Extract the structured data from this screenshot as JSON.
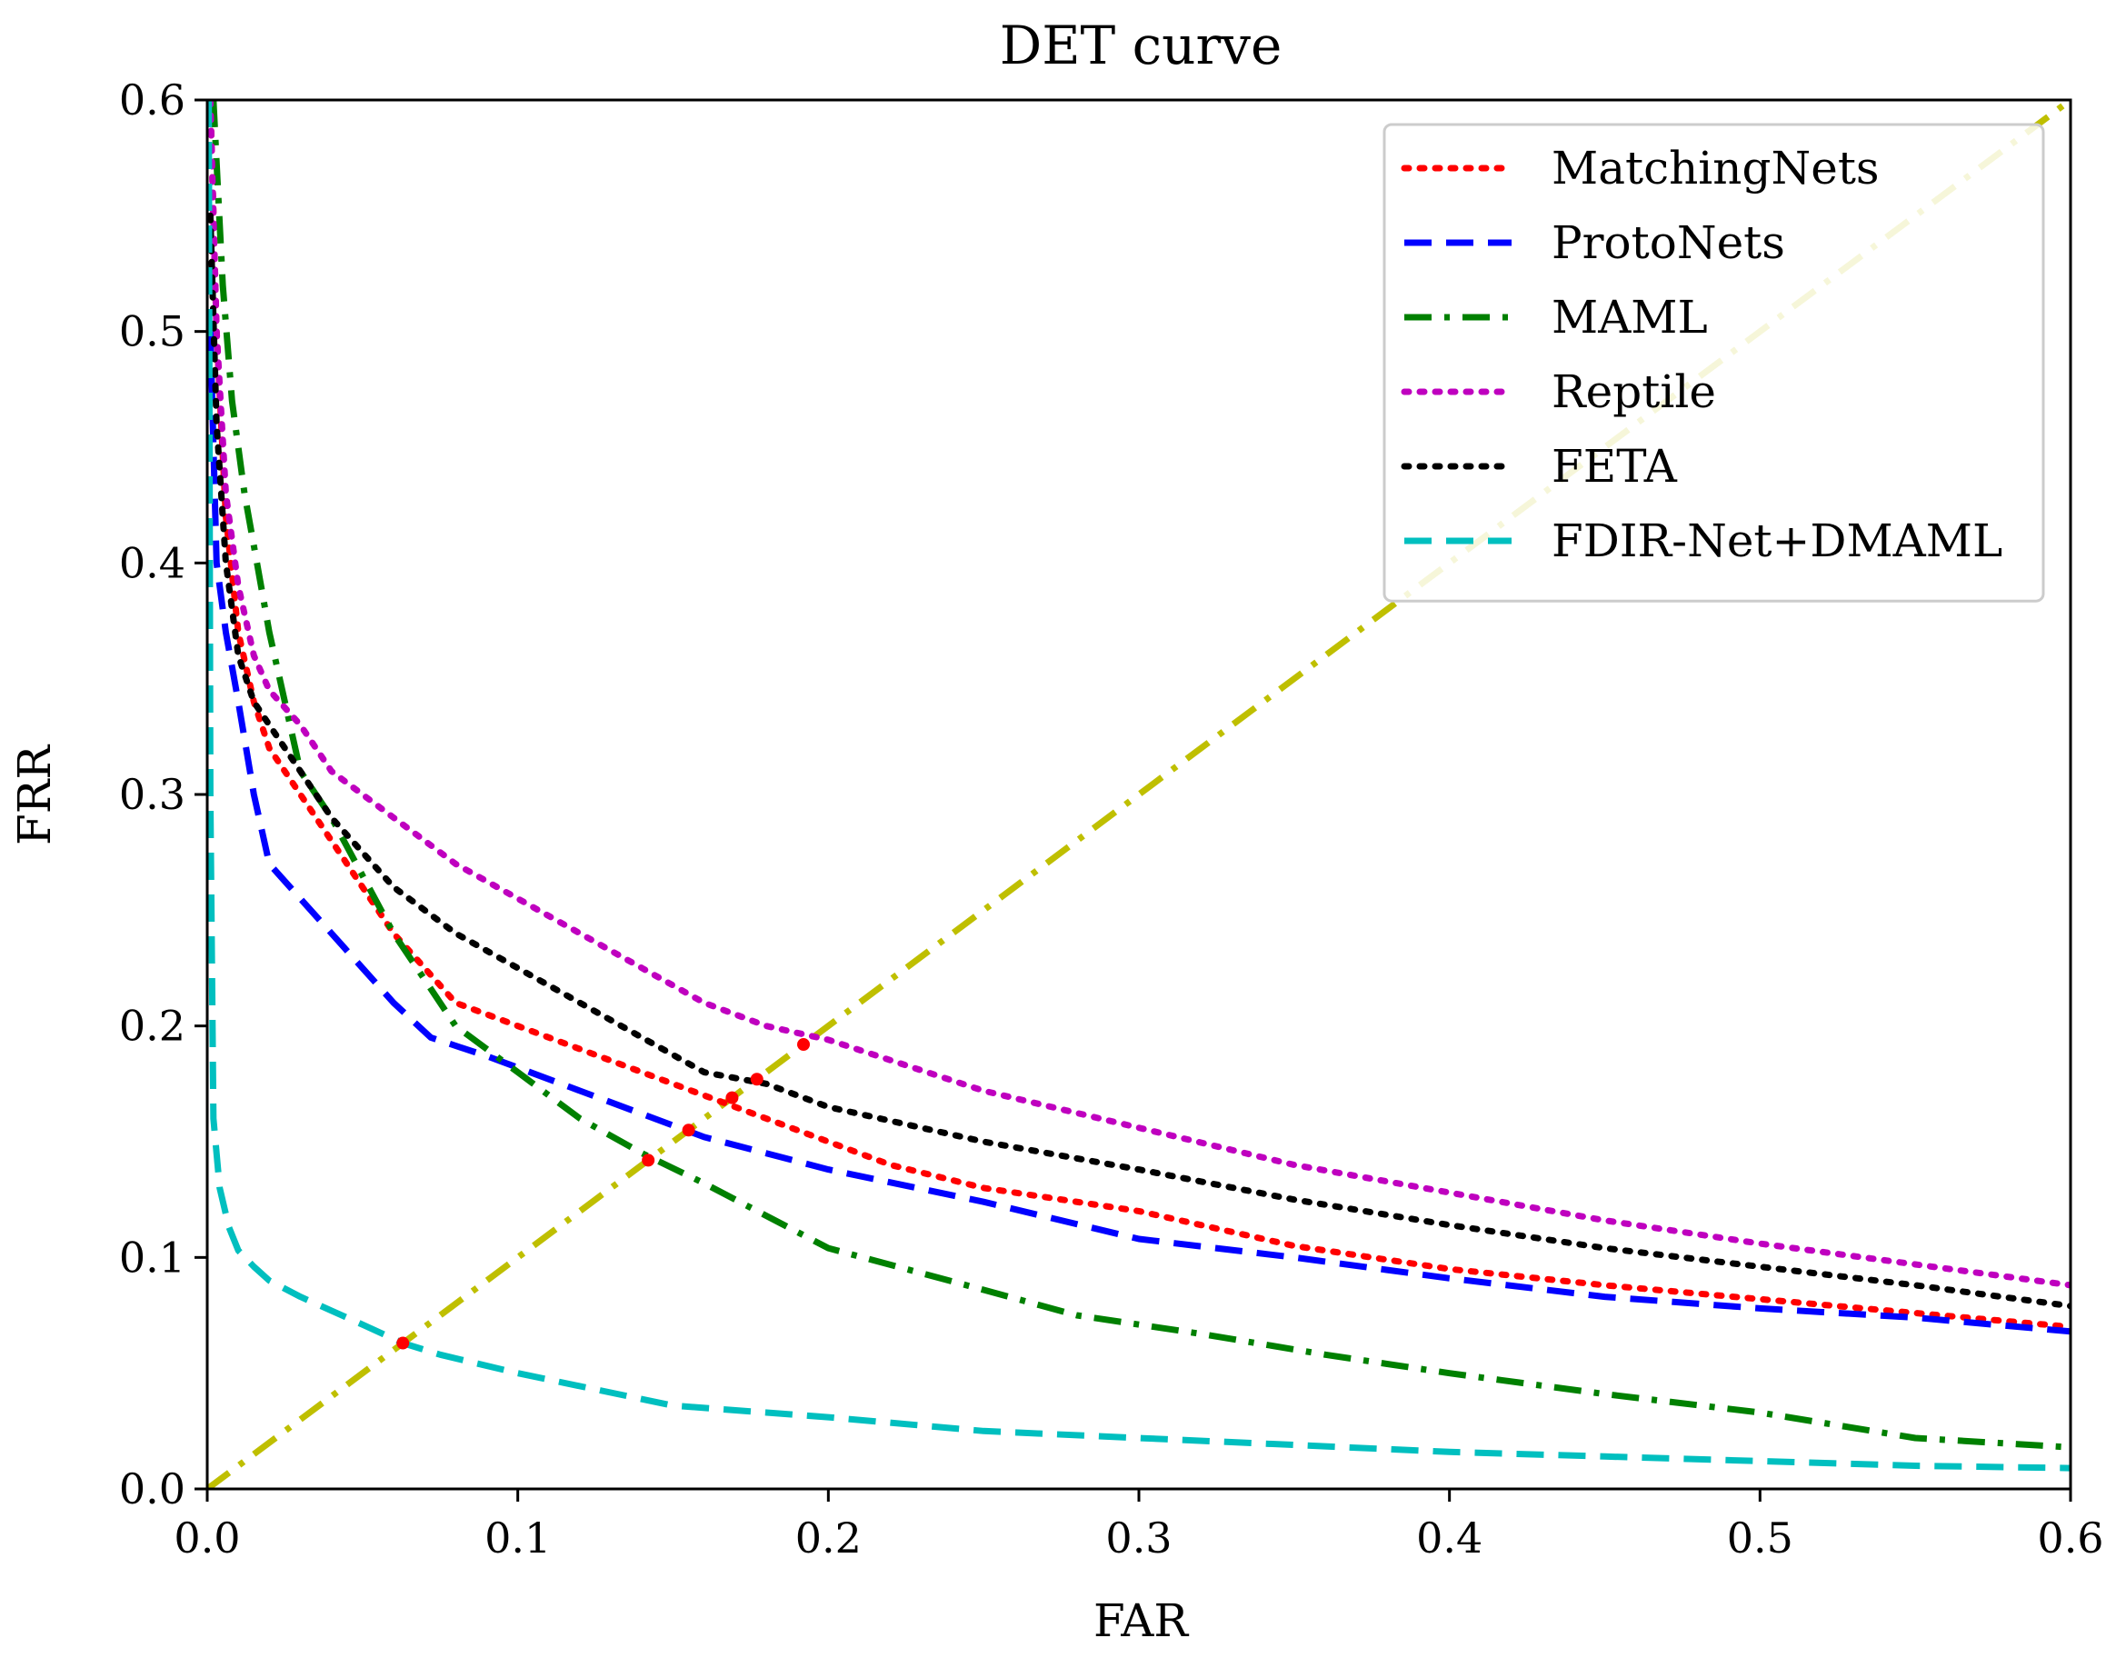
{
  "chart_data": {
    "type": "line",
    "title": "DET curve",
    "xlabel": "FAR",
    "ylabel": "FRR",
    "xlim": [
      0.0,
      0.6
    ],
    "ylim": [
      0.0,
      0.6
    ],
    "xticks": [
      0.0,
      0.1,
      0.2,
      0.3,
      0.4,
      0.5,
      0.6
    ],
    "yticks": [
      0.0,
      0.1,
      0.2,
      0.3,
      0.4,
      0.5,
      0.6
    ],
    "xtick_labels": [
      "0.0",
      "0.1",
      "0.2",
      "0.3",
      "0.4",
      "0.5",
      "0.6"
    ],
    "ytick_labels": [
      "0.0",
      "0.1",
      "0.2",
      "0.3",
      "0.4",
      "0.5",
      "0.6"
    ],
    "grid": false,
    "legend_position": "top-right",
    "series": [
      {
        "name": "MatchingNets",
        "color": "#ff0000",
        "style": "dotted",
        "x": [
          0.001,
          0.003,
          0.006,
          0.01,
          0.015,
          0.02,
          0.03,
          0.04,
          0.05,
          0.06,
          0.07,
          0.08,
          0.09,
          0.1,
          0.12,
          0.14,
          0.16,
          0.18,
          0.2,
          0.22,
          0.25,
          0.3,
          0.35,
          0.4,
          0.45,
          0.5,
          0.55,
          0.6
        ],
        "y": [
          0.6,
          0.5,
          0.42,
          0.37,
          0.34,
          0.32,
          0.3,
          0.28,
          0.26,
          0.24,
          0.225,
          0.21,
          0.205,
          0.2,
          0.19,
          0.18,
          0.17,
          0.16,
          0.15,
          0.14,
          0.13,
          0.12,
          0.105,
          0.095,
          0.088,
          0.082,
          0.076,
          0.07
        ]
      },
      {
        "name": "ProtoNets",
        "color": "#0000ff",
        "style": "dashed",
        "x": [
          0.001,
          0.003,
          0.006,
          0.01,
          0.015,
          0.02,
          0.03,
          0.04,
          0.05,
          0.06,
          0.072,
          0.09,
          0.1,
          0.12,
          0.14,
          0.16,
          0.18,
          0.2,
          0.25,
          0.3,
          0.35,
          0.4,
          0.45,
          0.5,
          0.55,
          0.6
        ],
        "y": [
          0.5,
          0.4,
          0.37,
          0.34,
          0.3,
          0.27,
          0.255,
          0.24,
          0.225,
          0.21,
          0.195,
          0.187,
          0.182,
          0.172,
          0.162,
          0.152,
          0.145,
          0.138,
          0.124,
          0.108,
          0.1,
          0.091,
          0.083,
          0.078,
          0.074,
          0.068
        ]
      },
      {
        "name": "MAML",
        "color": "#008000",
        "style": "dashdot",
        "x": [
          0.002,
          0.005,
          0.008,
          0.012,
          0.016,
          0.02,
          0.025,
          0.03,
          0.04,
          0.05,
          0.06,
          0.07,
          0.08,
          0.09,
          0.1,
          0.12,
          0.14,
          0.16,
          0.18,
          0.2,
          0.25,
          0.28,
          0.32,
          0.36,
          0.4,
          0.45,
          0.5,
          0.55,
          0.6
        ],
        "y": [
          0.6,
          0.52,
          0.47,
          0.43,
          0.4,
          0.37,
          0.34,
          0.31,
          0.29,
          0.265,
          0.24,
          0.22,
          0.2,
          0.19,
          0.18,
          0.16,
          0.145,
          0.132,
          0.118,
          0.104,
          0.086,
          0.075,
          0.067,
          0.058,
          0.05,
          0.041,
          0.033,
          0.022,
          0.018
        ]
      },
      {
        "name": "Reptile",
        "color": "#bf00bf",
        "style": "dotted",
        "x": [
          0.001,
          0.003,
          0.006,
          0.01,
          0.015,
          0.02,
          0.03,
          0.04,
          0.05,
          0.06,
          0.07,
          0.08,
          0.1,
          0.12,
          0.14,
          0.16,
          0.18,
          0.2,
          0.25,
          0.3,
          0.35,
          0.4,
          0.45,
          0.5,
          0.55,
          0.6
        ],
        "y": [
          0.6,
          0.5,
          0.43,
          0.39,
          0.36,
          0.345,
          0.33,
          0.31,
          0.3,
          0.29,
          0.28,
          0.27,
          0.255,
          0.24,
          0.225,
          0.21,
          0.2,
          0.194,
          0.172,
          0.156,
          0.14,
          0.128,
          0.116,
          0.106,
          0.097,
          0.088
        ]
      },
      {
        "name": "FETA",
        "color": "#000000",
        "style": "dotted",
        "x": [
          0.001,
          0.003,
          0.006,
          0.01,
          0.015,
          0.02,
          0.03,
          0.04,
          0.05,
          0.06,
          0.07,
          0.08,
          0.1,
          0.12,
          0.14,
          0.16,
          0.18,
          0.2,
          0.25,
          0.3,
          0.35,
          0.4,
          0.45,
          0.5,
          0.55,
          0.6
        ],
        "y": [
          0.55,
          0.46,
          0.4,
          0.36,
          0.34,
          0.33,
          0.31,
          0.29,
          0.275,
          0.26,
          0.25,
          0.24,
          0.225,
          0.21,
          0.195,
          0.18,
          0.175,
          0.165,
          0.15,
          0.138,
          0.125,
          0.114,
          0.104,
          0.096,
          0.088,
          0.079
        ]
      },
      {
        "name": "FDIR-Net+DMAML",
        "color": "#00bfbf",
        "style": "dashed",
        "x": [
          0.0005,
          0.001,
          0.002,
          0.004,
          0.007,
          0.01,
          0.015,
          0.02,
          0.03,
          0.04,
          0.05,
          0.063,
          0.075,
          0.1,
          0.125,
          0.15,
          0.2,
          0.25,
          0.3,
          0.35,
          0.4,
          0.45,
          0.5,
          0.55,
          0.6
        ],
        "y": [
          0.6,
          0.3,
          0.16,
          0.13,
          0.113,
          0.103,
          0.096,
          0.09,
          0.083,
          0.077,
          0.071,
          0.063,
          0.058,
          0.05,
          0.043,
          0.036,
          0.031,
          0.025,
          0.022,
          0.019,
          0.016,
          0.014,
          0.012,
          0.01,
          0.009
        ]
      },
      {
        "name": "EER line",
        "color": "#bfbf00",
        "style": "dashdot",
        "legend": false,
        "x": [
          0.0,
          0.6
        ],
        "y": [
          0.0,
          0.6
        ]
      }
    ],
    "eer_points": [
      {
        "series": "MatchingNets",
        "x": 0.169,
        "y": 0.169
      },
      {
        "series": "ProtoNets",
        "x": 0.155,
        "y": 0.155
      },
      {
        "series": "MAML",
        "x": 0.142,
        "y": 0.142
      },
      {
        "series": "Reptile",
        "x": 0.192,
        "y": 0.192
      },
      {
        "series": "FETA",
        "x": 0.177,
        "y": 0.177
      },
      {
        "series": "FDIR-Net+DMAML",
        "x": 0.063,
        "y": 0.063
      }
    ]
  }
}
